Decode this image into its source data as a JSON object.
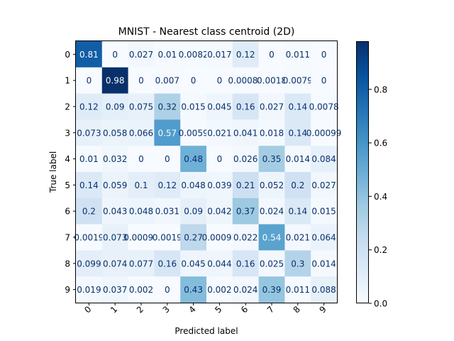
{
  "chart_data": {
    "type": "heatmap",
    "title": "MNIST - Nearest class centroid (2D)",
    "xlabel": "Predicted label",
    "ylabel": "True label",
    "x_categories": [
      "0",
      "1",
      "2",
      "3",
      "4",
      "5",
      "6",
      "7",
      "8",
      "9"
    ],
    "y_categories": [
      "0",
      "1",
      "2",
      "3",
      "4",
      "5",
      "6",
      "7",
      "8",
      "9"
    ],
    "values": [
      [
        0.81,
        0,
        0.027,
        0.01,
        0.0082,
        0.017,
        0.12,
        0,
        0.011,
        0
      ],
      [
        0,
        0.98,
        0,
        0.007,
        0,
        0,
        0.00088,
        0.0018,
        0.0079,
        0
      ],
      [
        0.12,
        0.09,
        0.075,
        0.32,
        0.015,
        0.045,
        0.16,
        0.027,
        0.14,
        0.0078
      ],
      [
        0.073,
        0.058,
        0.066,
        0.57,
        0.0059,
        0.021,
        0.041,
        0.018,
        0.14,
        0.00099
      ],
      [
        0.01,
        0.032,
        0,
        0,
        0.48,
        0,
        0.026,
        0.35,
        0.014,
        0.084
      ],
      [
        0.14,
        0.059,
        0.1,
        0.12,
        0.048,
        0.039,
        0.21,
        0.052,
        0.2,
        0.027
      ],
      [
        0.2,
        0.043,
        0.048,
        0.031,
        0.09,
        0.042,
        0.37,
        0.024,
        0.14,
        0.015
      ],
      [
        0.0019,
        0.073,
        0.00097,
        0.0019,
        0.27,
        0.00097,
        0.022,
        0.54,
        0.021,
        0.064
      ],
      [
        0.099,
        0.074,
        0.077,
        0.16,
        0.045,
        0.044,
        0.16,
        0.025,
        0.3,
        0.014
      ],
      [
        0.019,
        0.037,
        0.002,
        0,
        0.43,
        0.002,
        0.024,
        0.39,
        0.011,
        0.088
      ]
    ],
    "colormap": "Blues",
    "vmin": 0,
    "vmax": 0.98,
    "colorbar_ticks": [
      0.0,
      0.2,
      0.4,
      0.6,
      0.8
    ],
    "colorbar_tick_labels": [
      "0.0",
      "0.2",
      "0.4",
      "0.6",
      "0.8"
    ],
    "grid": false
  }
}
